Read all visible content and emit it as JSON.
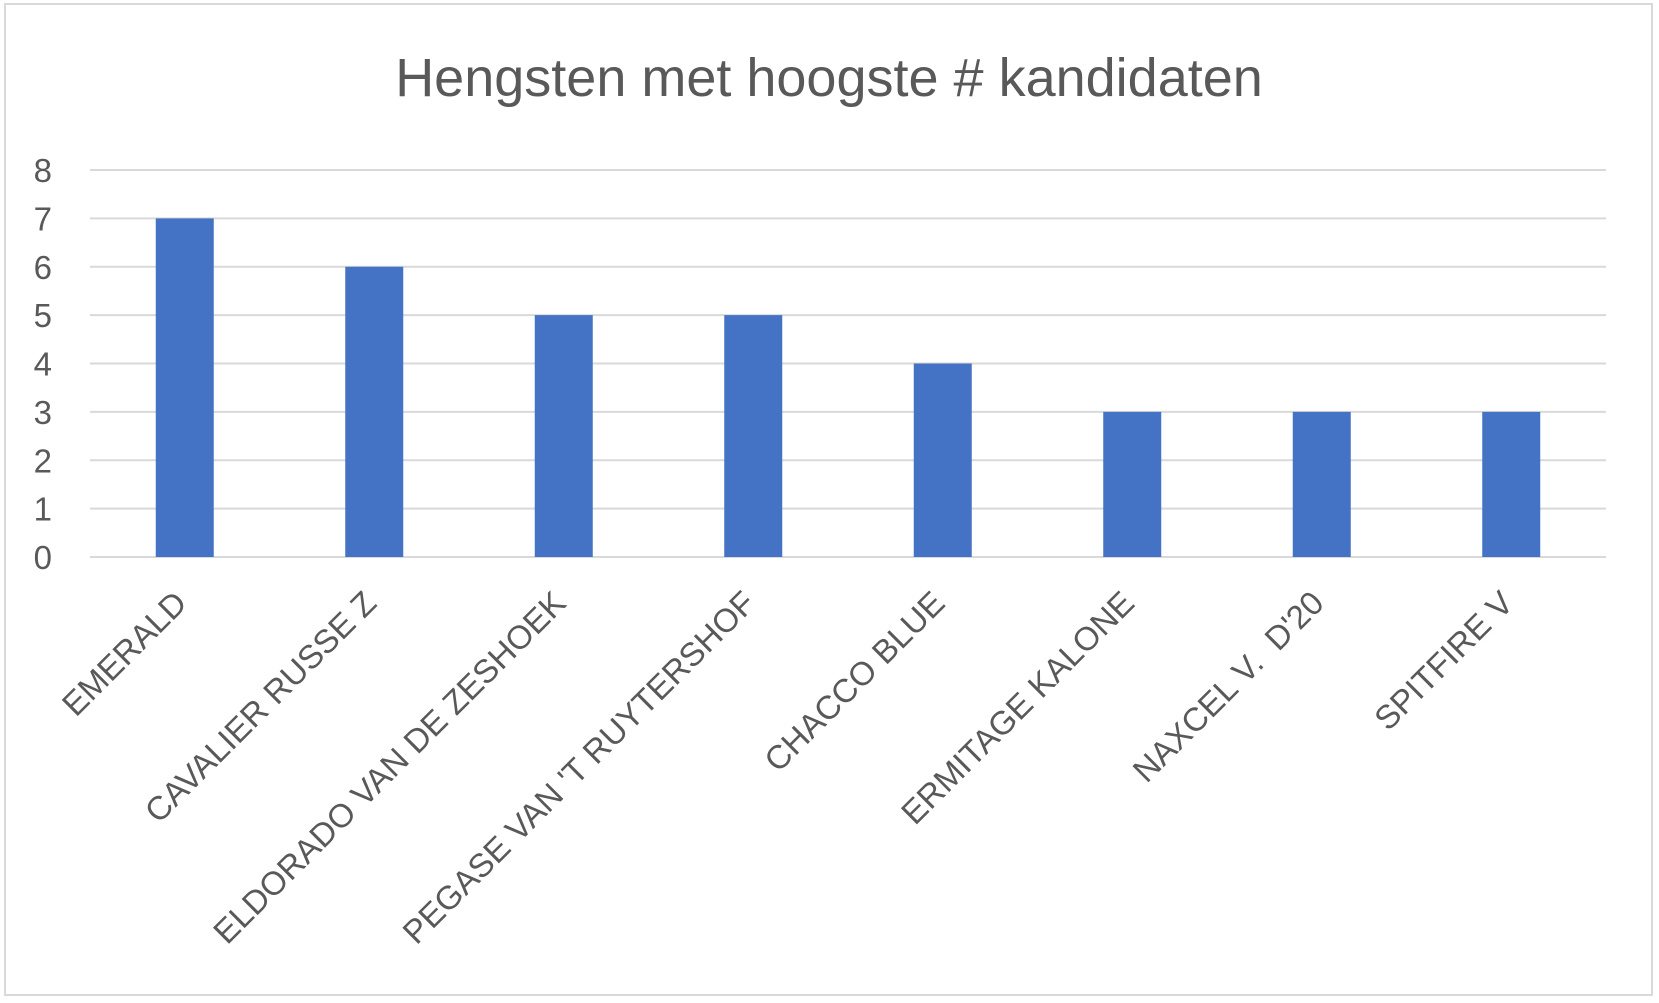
{
  "chart_data": {
    "type": "bar",
    "title": "Hengsten met hoogste # kandidaten",
    "xlabel": "",
    "ylabel": "",
    "categories": [
      "EMERALD",
      "CAVALIER RUSSE Z",
      "ELDORADO VAN DE ZESHOEK",
      "PEGASE VAN 'T RUYTERSHOF",
      "CHACCO BLUE",
      "ERMITAGE KALONE",
      "NAXCEL V.  D'20",
      "SPITFIRE V"
    ],
    "values": [
      7,
      6,
      5,
      5,
      4,
      3,
      3,
      3
    ],
    "ylim": [
      0,
      8
    ],
    "yticks": [
      "0",
      "1",
      "2",
      "3",
      "4",
      "5",
      "6",
      "7",
      "8"
    ],
    "grid": true,
    "legend": "none",
    "colors": {
      "bar": "#4472C4",
      "grid": "#d9d9d9",
      "text": "#595959",
      "border": "#d9d9d9"
    }
  }
}
